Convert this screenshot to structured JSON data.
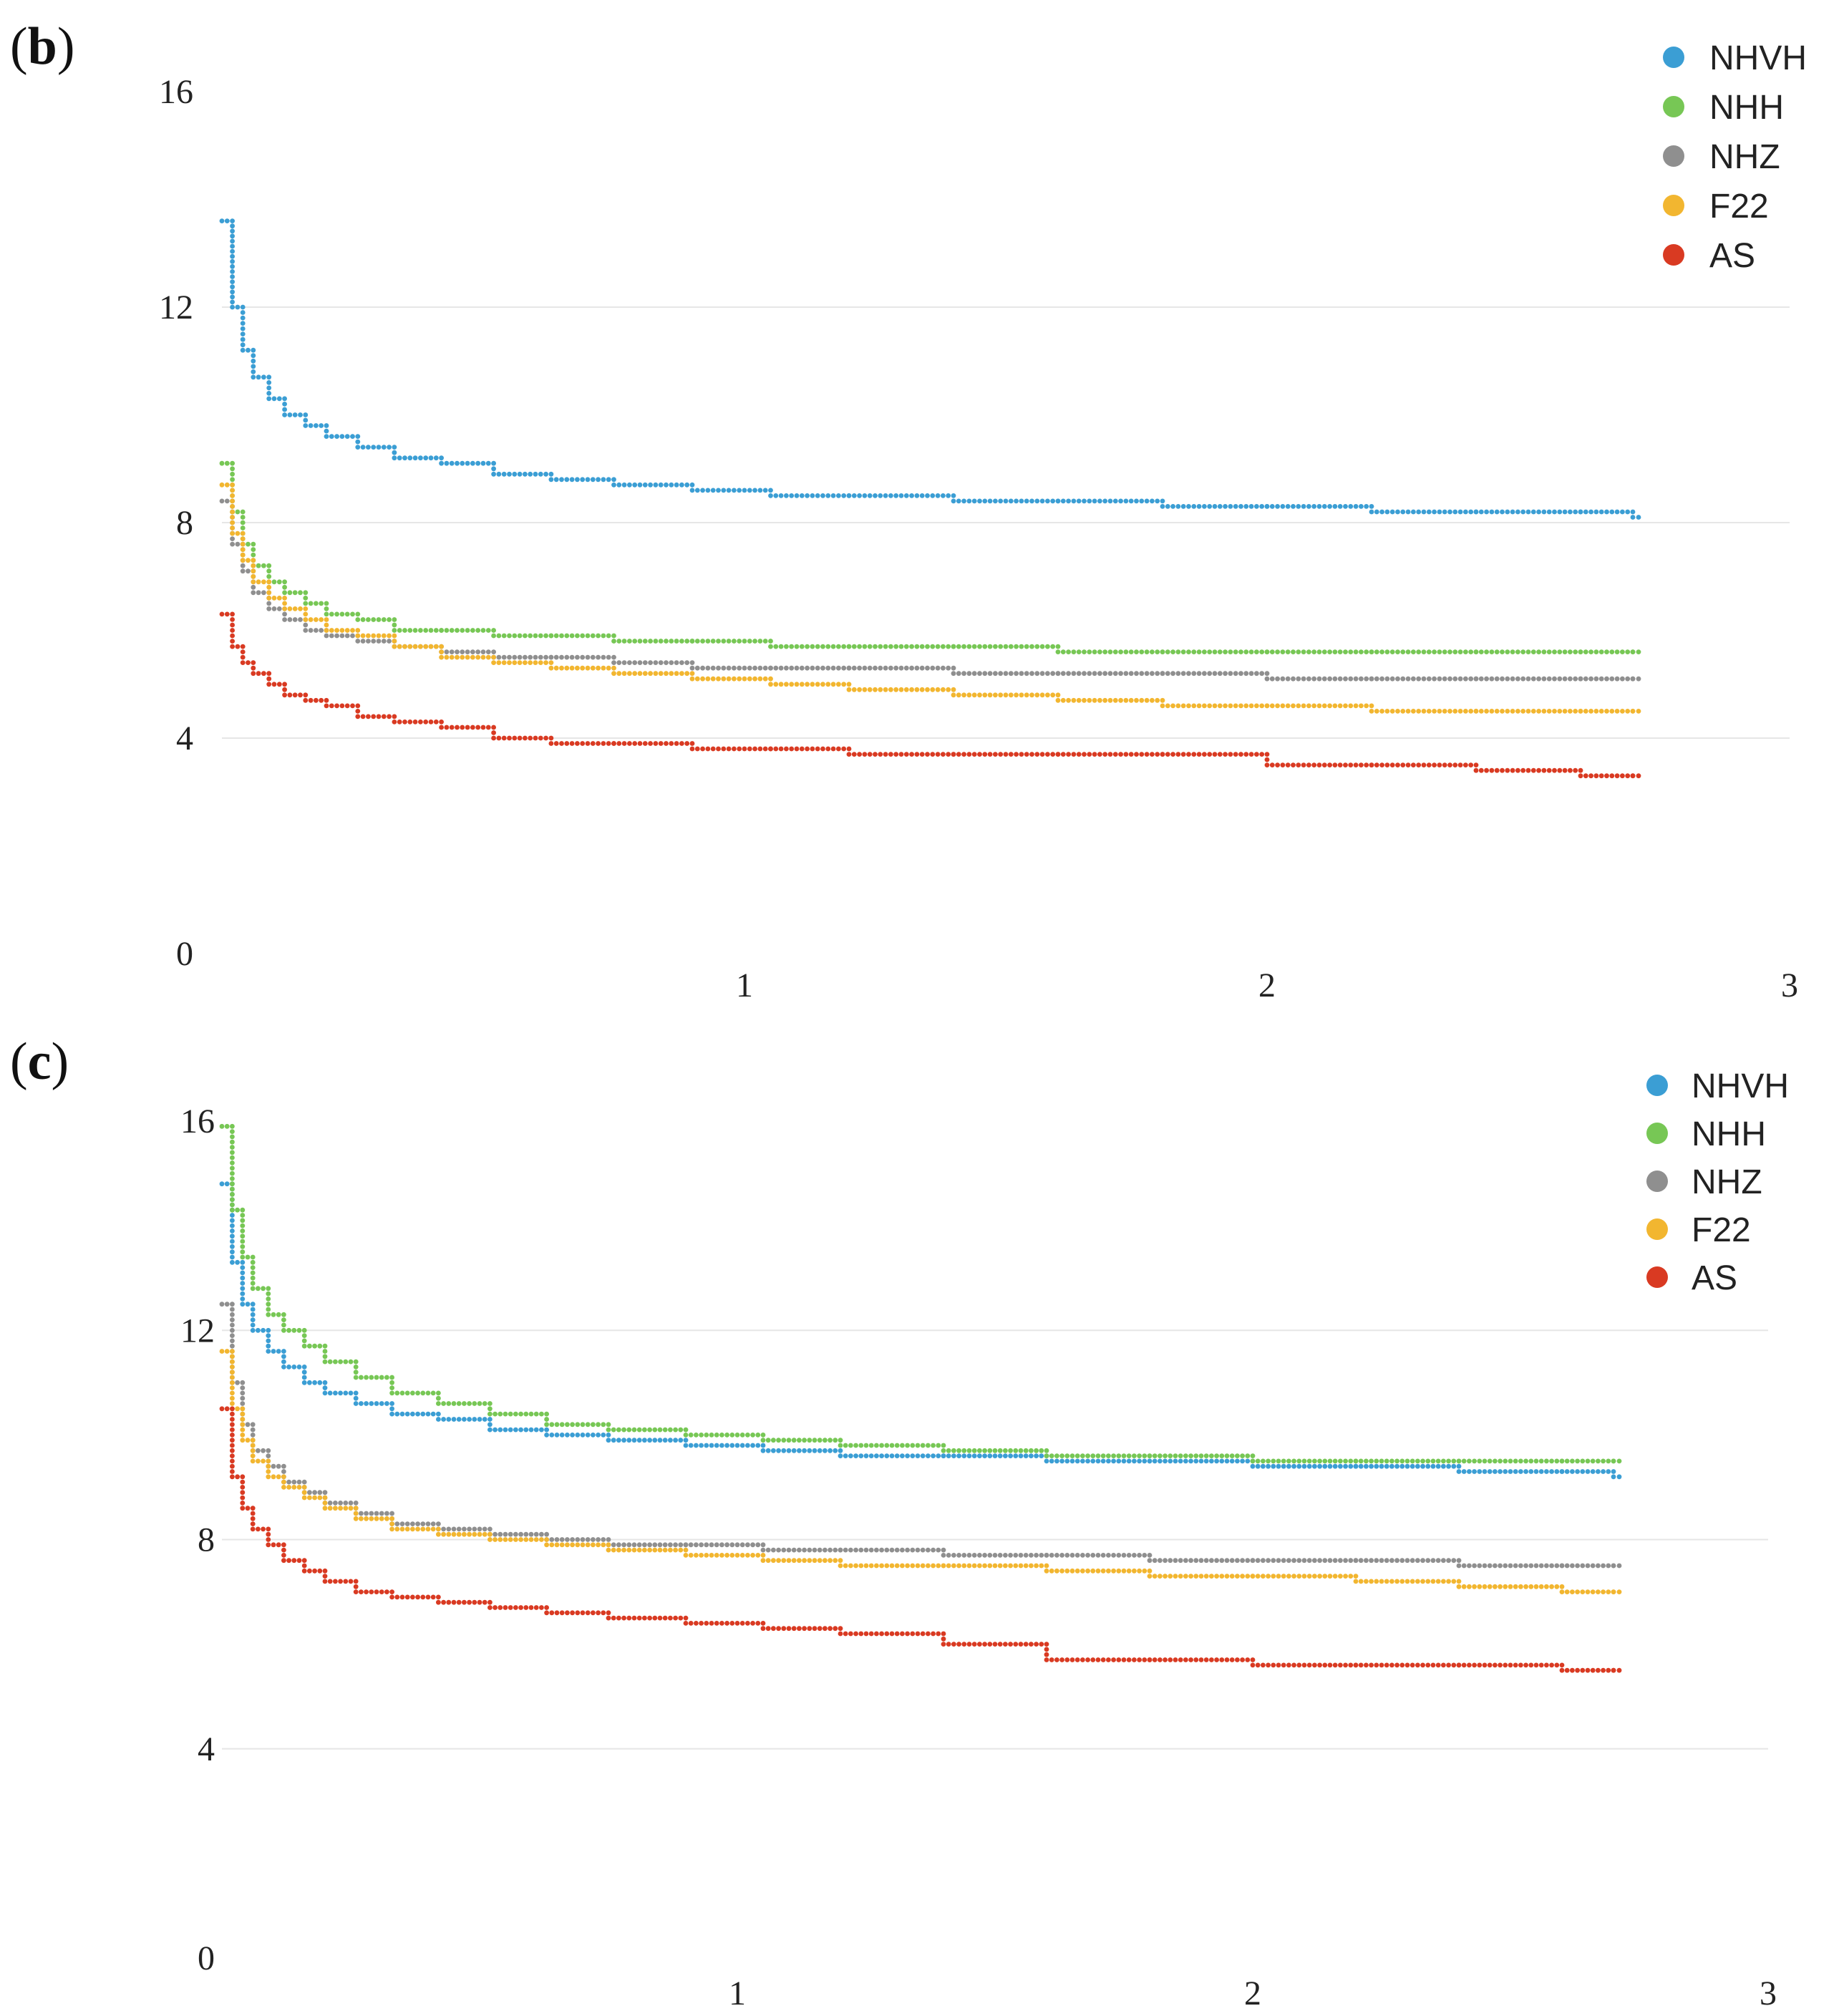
{
  "colors": {
    "NHVH": "#3b9ed4",
    "NHH": "#77c755",
    "NHZ": "#8f8f8f",
    "F22": "#f2b630",
    "AS": "#d93a22",
    "grid": "#e6e6e6"
  },
  "chart_data": [
    {
      "panel_label": "b",
      "type": "scatter",
      "title": "",
      "xlabel": "",
      "ylabel": "",
      "xlim": [
        0,
        3
      ],
      "ylim": [
        0,
        16
      ],
      "x_ticks": [
        "1",
        "2",
        "3"
      ],
      "y_ticks": [
        "0",
        "4",
        "8",
        "12",
        "16"
      ],
      "grid": "horizontal",
      "legend": [
        "NHVH",
        "NHH",
        "NHZ",
        "F22",
        "AS"
      ],
      "legend_position": "top-right",
      "series": [
        {
          "name": "NHVH",
          "x": [
            0.0,
            0.02,
            0.04,
            0.06,
            0.09,
            0.12,
            0.16,
            0.2,
            0.26,
            0.33,
            0.42,
            0.52,
            0.63,
            0.75,
            0.9,
            1.05,
            1.2,
            1.4,
            1.6,
            1.8,
            2.0,
            2.2,
            2.4,
            2.6,
            2.7
          ],
          "y": [
            13.6,
            12.0,
            11.2,
            10.7,
            10.3,
            10.0,
            9.8,
            9.6,
            9.4,
            9.2,
            9.1,
            8.9,
            8.8,
            8.7,
            8.6,
            8.5,
            8.5,
            8.4,
            8.4,
            8.3,
            8.3,
            8.2,
            8.2,
            8.2,
            8.1
          ]
        },
        {
          "name": "NHH",
          "x": [
            0.0,
            0.02,
            0.04,
            0.06,
            0.09,
            0.12,
            0.16,
            0.2,
            0.26,
            0.33,
            0.42,
            0.52,
            0.63,
            0.75,
            0.9,
            1.05,
            1.2,
            1.4,
            1.6,
            1.8,
            2.0,
            2.2,
            2.4,
            2.6,
            2.7
          ],
          "y": [
            9.1,
            8.2,
            7.6,
            7.2,
            6.9,
            6.7,
            6.5,
            6.3,
            6.2,
            6.0,
            6.0,
            5.9,
            5.9,
            5.8,
            5.8,
            5.7,
            5.7,
            5.7,
            5.6,
            5.6,
            5.6,
            5.6,
            5.6,
            5.6,
            5.6
          ]
        },
        {
          "name": "NHZ",
          "x": [
            0.0,
            0.02,
            0.04,
            0.06,
            0.09,
            0.12,
            0.16,
            0.2,
            0.26,
            0.33,
            0.42,
            0.52,
            0.63,
            0.75,
            0.9,
            1.05,
            1.2,
            1.4,
            1.6,
            1.8,
            2.0,
            2.2,
            2.4,
            2.6,
            2.7
          ],
          "y": [
            8.4,
            7.6,
            7.1,
            6.7,
            6.4,
            6.2,
            6.0,
            5.9,
            5.8,
            5.7,
            5.6,
            5.5,
            5.5,
            5.4,
            5.3,
            5.3,
            5.3,
            5.2,
            5.2,
            5.2,
            5.1,
            5.1,
            5.1,
            5.1,
            5.1
          ]
        },
        {
          "name": "F22",
          "x": [
            0.0,
            0.02,
            0.04,
            0.06,
            0.09,
            0.12,
            0.16,
            0.2,
            0.26,
            0.33,
            0.42,
            0.52,
            0.63,
            0.75,
            0.9,
            1.05,
            1.2,
            1.4,
            1.6,
            1.8,
            2.0,
            2.2,
            2.4,
            2.6,
            2.7
          ],
          "y": [
            8.7,
            7.8,
            7.3,
            6.9,
            6.6,
            6.4,
            6.2,
            6.0,
            5.9,
            5.7,
            5.5,
            5.4,
            5.3,
            5.2,
            5.1,
            5.0,
            4.9,
            4.8,
            4.7,
            4.6,
            4.6,
            4.5,
            4.5,
            4.5,
            4.5
          ]
        },
        {
          "name": "AS",
          "x": [
            0.0,
            0.02,
            0.04,
            0.06,
            0.09,
            0.12,
            0.16,
            0.2,
            0.26,
            0.33,
            0.42,
            0.52,
            0.63,
            0.75,
            0.9,
            1.05,
            1.2,
            1.4,
            1.6,
            1.8,
            2.0,
            2.2,
            2.4,
            2.6,
            2.7
          ],
          "y": [
            6.3,
            5.7,
            5.4,
            5.2,
            5.0,
            4.8,
            4.7,
            4.6,
            4.4,
            4.3,
            4.2,
            4.0,
            3.9,
            3.9,
            3.8,
            3.8,
            3.7,
            3.7,
            3.7,
            3.7,
            3.5,
            3.5,
            3.4,
            3.3,
            3.3
          ]
        }
      ]
    },
    {
      "panel_label": "c",
      "type": "scatter",
      "title": "",
      "xlabel": "",
      "ylabel": "",
      "xlim": [
        0,
        3
      ],
      "ylim": [
        0,
        16
      ],
      "x_ticks": [
        "1",
        "2",
        "3"
      ],
      "y_ticks": [
        "0",
        "4",
        "8",
        "12",
        "16"
      ],
      "grid": "horizontal",
      "legend": [
        "NHVH",
        "NHH",
        "NHZ",
        "F22",
        "AS"
      ],
      "legend_position": "top-right",
      "series": [
        {
          "name": "NHVH",
          "x": [
            0.0,
            0.02,
            0.04,
            0.06,
            0.09,
            0.12,
            0.16,
            0.2,
            0.26,
            0.33,
            0.42,
            0.52,
            0.63,
            0.75,
            0.9,
            1.05,
            1.2,
            1.4,
            1.6,
            1.8,
            2.0,
            2.2,
            2.4,
            2.6,
            2.7
          ],
          "y": [
            14.8,
            13.3,
            12.5,
            12.0,
            11.6,
            11.3,
            11.0,
            10.8,
            10.6,
            10.4,
            10.3,
            10.1,
            10.0,
            9.9,
            9.8,
            9.7,
            9.6,
            9.6,
            9.5,
            9.5,
            9.4,
            9.4,
            9.3,
            9.3,
            9.2
          ]
        },
        {
          "name": "NHH",
          "x": [
            0.0,
            0.02,
            0.04,
            0.06,
            0.09,
            0.12,
            0.16,
            0.2,
            0.26,
            0.33,
            0.42,
            0.52,
            0.63,
            0.75,
            0.9,
            1.05,
            1.2,
            1.4,
            1.6,
            1.8,
            2.0,
            2.2,
            2.4,
            2.6,
            2.7
          ],
          "y": [
            15.9,
            14.3,
            13.4,
            12.8,
            12.3,
            12.0,
            11.7,
            11.4,
            11.1,
            10.8,
            10.6,
            10.4,
            10.2,
            10.1,
            10.0,
            9.9,
            9.8,
            9.7,
            9.6,
            9.6,
            9.5,
            9.5,
            9.5,
            9.5,
            9.5
          ]
        },
        {
          "name": "NHZ",
          "x": [
            0.0,
            0.02,
            0.04,
            0.06,
            0.09,
            0.12,
            0.16,
            0.2,
            0.26,
            0.33,
            0.42,
            0.52,
            0.63,
            0.75,
            0.9,
            1.05,
            1.2,
            1.4,
            1.6,
            1.8,
            2.0,
            2.2,
            2.4,
            2.6,
            2.7
          ],
          "y": [
            12.5,
            11.0,
            10.2,
            9.7,
            9.4,
            9.1,
            8.9,
            8.7,
            8.5,
            8.3,
            8.2,
            8.1,
            8.0,
            7.9,
            7.9,
            7.8,
            7.8,
            7.7,
            7.7,
            7.6,
            7.6,
            7.6,
            7.5,
            7.5,
            7.5
          ]
        },
        {
          "name": "F22",
          "x": [
            0.0,
            0.02,
            0.04,
            0.06,
            0.09,
            0.12,
            0.16,
            0.2,
            0.26,
            0.33,
            0.42,
            0.52,
            0.63,
            0.75,
            0.9,
            1.05,
            1.2,
            1.4,
            1.6,
            1.8,
            2.0,
            2.2,
            2.4,
            2.6,
            2.7
          ],
          "y": [
            11.6,
            10.5,
            9.9,
            9.5,
            9.2,
            9.0,
            8.8,
            8.6,
            8.4,
            8.2,
            8.1,
            8.0,
            7.9,
            7.8,
            7.7,
            7.6,
            7.5,
            7.5,
            7.4,
            7.3,
            7.3,
            7.2,
            7.1,
            7.0,
            7.0
          ]
        },
        {
          "name": "AS",
          "x": [
            0.0,
            0.02,
            0.04,
            0.06,
            0.09,
            0.12,
            0.16,
            0.2,
            0.26,
            0.33,
            0.42,
            0.52,
            0.63,
            0.75,
            0.9,
            1.05,
            1.2,
            1.4,
            1.6,
            1.8,
            2.0,
            2.2,
            2.4,
            2.6,
            2.7
          ],
          "y": [
            10.5,
            9.2,
            8.6,
            8.2,
            7.9,
            7.6,
            7.4,
            7.2,
            7.0,
            6.9,
            6.8,
            6.7,
            6.6,
            6.5,
            6.4,
            6.3,
            6.2,
            6.0,
            5.7,
            5.7,
            5.6,
            5.6,
            5.6,
            5.5,
            5.5
          ]
        }
      ]
    }
  ]
}
